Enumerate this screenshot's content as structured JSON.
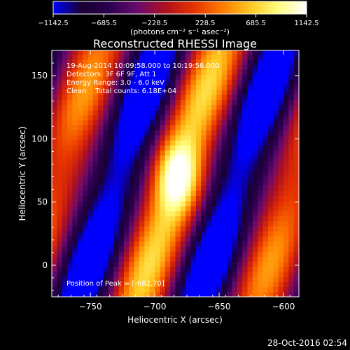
{
  "chart_data": {
    "type": "heatmap",
    "title": "Reconstructed RHESSI Image",
    "xlabel": "Heliocentric X (arcsec)",
    "ylabel": "Heliocentric Y (arcsec)",
    "xlim": [
      -780,
      -588
    ],
    "ylim": [
      -25,
      170
    ],
    "xticks": [
      -750,
      -700,
      -650,
      -600
    ],
    "yticks": [
      0,
      50,
      100,
      150
    ],
    "colorbar": {
      "ticks": [
        -1142.5,
        -685.5,
        -228.5,
        228.5,
        685.5,
        1142.5
      ],
      "tick_labels": [
        "−1142.5",
        "−685.5",
        "−228.5",
        "228.5",
        "685.5",
        "1142.5"
      ],
      "unit_label": "(photons cm⁻² s⁻¹ asec⁻²)",
      "range": [
        -1142.5,
        1142.5
      ],
      "colormap": [
        "#0000ff",
        "#1a0033",
        "#2a0050",
        "#6a0a6e",
        "#b01020",
        "#e63200",
        "#ff7a00",
        "#ffc820",
        "#ffff80",
        "#ffffff"
      ]
    },
    "annotations": [
      "19-Aug-2014 10:09:58.000 to 10:19:58.000",
      "Detectors: 3F 6F 9F, Att 1",
      "Energy Range: 3.0 - 6.0 keV",
      "Clean    Total counts: 6.18E+04"
    ],
    "peak_label": "Position of Peak = [-682,70]",
    "peak": {
      "x": -682,
      "y": 70,
      "value": 1142.5
    },
    "grid": false
  },
  "footer": {
    "timestamp": "28-Oct-2016 02:54"
  }
}
